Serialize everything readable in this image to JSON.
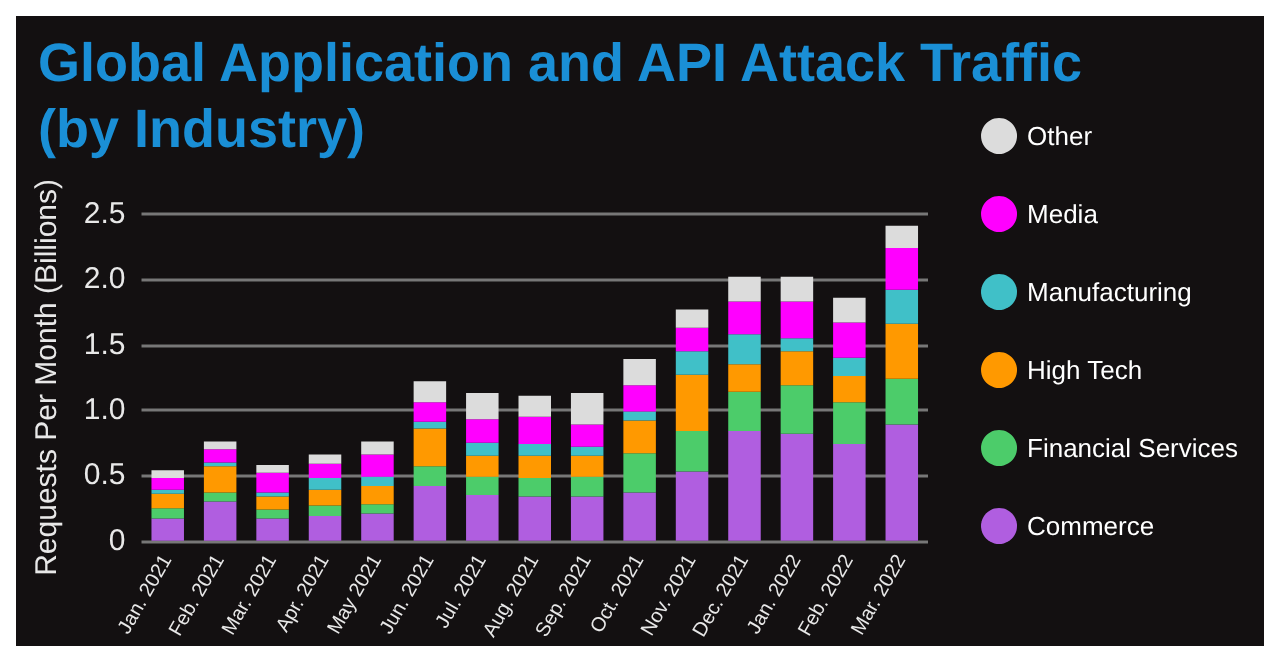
{
  "chart_data": {
    "type": "bar",
    "title": "Global Application and API Attack Traffic\n(by Industry)",
    "ylabel": "Requests Per Month (Billions)",
    "categories": [
      "Jan. 2021",
      "Feb. 2021",
      "Mar. 2021",
      "Apr. 2021",
      "May 2021",
      "Jun. 2021",
      "Jul. 2021",
      "Aug. 2021",
      "Sep. 2021",
      "Oct. 2021",
      "Nov. 2021",
      "Dec. 2021",
      "Jan. 2022",
      "Feb. 2022",
      "Mar. 2022"
    ],
    "stacked": true,
    "series": [
      {
        "name": "Commerce",
        "color": "#b05ee0",
        "values": [
          0.17,
          0.3,
          0.17,
          0.19,
          0.21,
          0.42,
          0.35,
          0.34,
          0.34,
          0.37,
          0.53,
          0.84,
          0.82,
          0.74,
          0.89
        ]
      },
      {
        "name": "Financial Services",
        "color": "#4ccc6a",
        "values": [
          0.08,
          0.07,
          0.07,
          0.08,
          0.07,
          0.15,
          0.14,
          0.14,
          0.15,
          0.3,
          0.31,
          0.3,
          0.37,
          0.32,
          0.35
        ]
      },
      {
        "name": "High Tech",
        "color": "#ff9900",
        "values": [
          0.11,
          0.2,
          0.1,
          0.12,
          0.14,
          0.29,
          0.16,
          0.17,
          0.16,
          0.25,
          0.43,
          0.21,
          0.26,
          0.2,
          0.42
        ]
      },
      {
        "name": "Manufacturing",
        "color": "#40c0c8",
        "values": [
          0.03,
          0.03,
          0.03,
          0.09,
          0.07,
          0.05,
          0.1,
          0.09,
          0.07,
          0.07,
          0.18,
          0.23,
          0.1,
          0.14,
          0.26
        ]
      },
      {
        "name": "Media",
        "color": "#ff00ff",
        "values": [
          0.09,
          0.1,
          0.15,
          0.11,
          0.17,
          0.15,
          0.18,
          0.21,
          0.17,
          0.2,
          0.18,
          0.25,
          0.28,
          0.27,
          0.32
        ]
      },
      {
        "name": "Other",
        "color": "#dcdcdc",
        "values": [
          0.06,
          0.06,
          0.06,
          0.07,
          0.1,
          0.16,
          0.2,
          0.16,
          0.24,
          0.2,
          0.14,
          0.19,
          0.19,
          0.19,
          0.17
        ]
      }
    ],
    "ylim": [
      0,
      2.5
    ],
    "yticks": [
      0,
      0.5,
      {
        "value": 1,
        "label": "1.0"
      },
      1.5,
      {
        "value": 2,
        "label": "2.0"
      },
      2.5
    ],
    "grid": "y",
    "legend": "right"
  }
}
